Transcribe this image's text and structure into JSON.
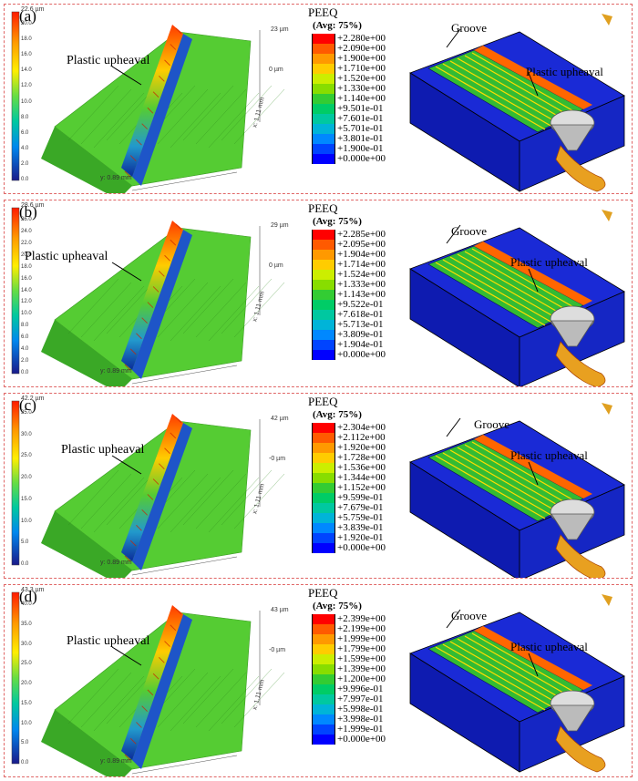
{
  "panels": [
    {
      "label": "(a)",
      "upheaval_label": "Plastic upheaval",
      "scale_max": "22.6 µm",
      "scale_ticks": [
        "20.0",
        "18.0",
        "16.0",
        "14.0",
        "12.0",
        "10.0",
        "8.0",
        "6.0",
        "4.0",
        "2.0",
        "0.0"
      ],
      "z_top": "23 µm",
      "z_zero": "0 µm",
      "x_dim": "x: 1.11 mm",
      "y_dim": "y: 0.89 mm",
      "peeq_title": "PEEQ",
      "peeq_sub": "(Avg: 75%)",
      "legend": [
        "+2.280e+00",
        "+2.090e+00",
        "+1.900e+00",
        "+1.710e+00",
        "+1.520e+00",
        "+1.330e+00",
        "+1.140e+00",
        "+9.501e-01",
        "+7.601e-01",
        "+5.701e-01",
        "+3.801e-01",
        "+1.900e-01",
        "+0.000e+00"
      ],
      "groove_label": "Groove",
      "fem_upheaval_label": "Plastic upheaval"
    },
    {
      "label": "(b)",
      "upheaval_label": "Plastic upheaval",
      "scale_max": "28.6 µm",
      "scale_ticks": [
        "26.0",
        "24.0",
        "22.0",
        "20.0",
        "18.0",
        "16.0",
        "14.0",
        "12.0",
        "10.0",
        "8.0",
        "6.0",
        "4.0",
        "2.0",
        "0.0"
      ],
      "z_top": "29 µm",
      "z_zero": "0 µm",
      "x_dim": "x: 1.11 mm",
      "y_dim": "y: 0.89 mm",
      "peeq_title": "PEEQ",
      "peeq_sub": "(Avg: 75%)",
      "legend": [
        "+2.285e+00",
        "+2.095e+00",
        "+1.904e+00",
        "+1.714e+00",
        "+1.524e+00",
        "+1.333e+00",
        "+1.143e+00",
        "+9.522e-01",
        "+7.618e-01",
        "+5.713e-01",
        "+3.809e-01",
        "+1.904e-01",
        "+0.000e+00"
      ],
      "groove_label": "Groove",
      "fem_upheaval_label": "Plastic upheaval"
    },
    {
      "label": "(c)",
      "upheaval_label": "Plastic upheaval",
      "scale_max": "42.2 µm",
      "scale_ticks": [
        "35.0",
        "30.0",
        "25.0",
        "20.0",
        "15.0",
        "10.0",
        "5.0",
        "0.0"
      ],
      "z_top": "42 µm",
      "z_zero": "-0 µm",
      "x_dim": "x: 1.11 mm",
      "y_dim": "y: 0.89 mm",
      "peeq_title": "PEEQ",
      "peeq_sub": "(Avg: 75%)",
      "legend": [
        "+2.304e+00",
        "+2.112e+00",
        "+1.920e+00",
        "+1.728e+00",
        "+1.536e+00",
        "+1.344e+00",
        "+1.152e+00",
        "+9.599e-01",
        "+7.679e-01",
        "+5.759e-01",
        "+3.839e-01",
        "+1.920e-01",
        "+0.000e+00"
      ],
      "groove_label": "Groove",
      "fem_upheaval_label": "Plastic upheaval"
    },
    {
      "label": "(d)",
      "upheaval_label": "Plastic upheaval",
      "scale_max": "43.3 µm",
      "scale_ticks": [
        "40.0",
        "35.0",
        "30.0",
        "25.0",
        "20.0",
        "15.0",
        "10.0",
        "5.0",
        "0.0"
      ],
      "z_top": "43 µm",
      "z_zero": "-0 µm",
      "x_dim": "x: 1.11 mm",
      "y_dim": "y: 0.89 mm",
      "peeq_title": "PEEQ",
      "peeq_sub": "(Avg: 75%)",
      "legend": [
        "+2.399e+00",
        "+2.199e+00",
        "+1.999e+00",
        "+1.799e+00",
        "+1.599e+00",
        "+1.399e+00",
        "+1.200e+00",
        "+9.996e-01",
        "+7.997e-01",
        "+5.998e-01",
        "+3.998e-01",
        "+1.999e-01",
        "+0.000e+00"
      ],
      "groove_label": "Groove",
      "fem_upheaval_label": "Plastic upheaval"
    }
  ],
  "legend_colors": [
    "#ff0000",
    "#ff5a00",
    "#ff9900",
    "#ffcc00",
    "#ccee00",
    "#88dd00",
    "#33cc33",
    "#00cc66",
    "#00c8a0",
    "#00b4d8",
    "#0088ff",
    "#0044ff",
    "#0000ff"
  ]
}
